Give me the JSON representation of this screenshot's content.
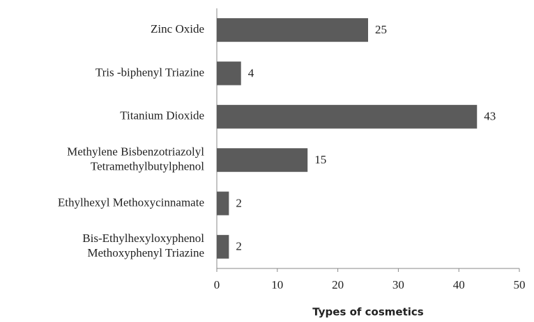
{
  "chart_data": {
    "type": "barh",
    "x_label": "Types of cosmetics",
    "categories": [
      [
        "Zinc Oxide"
      ],
      [
        "Tris -biphenyl Triazine"
      ],
      [
        "Titanium Dioxide"
      ],
      [
        "Methylene Bisbenzotriazolyl",
        "Tetramethylbutylphenol"
      ],
      [
        "Ethylhexyl Methoxycinnamate"
      ],
      [
        "Bis-Ethylhexyloxyphenol",
        "Methoxyphenyl Triazine"
      ]
    ],
    "values": [
      25,
      4,
      43,
      15,
      2,
      2
    ],
    "color": "#5b5b5b",
    "xlim": [
      0,
      50
    ],
    "xticks": [
      0,
      10,
      20,
      30,
      40,
      50
    ],
    "grid": false
  }
}
